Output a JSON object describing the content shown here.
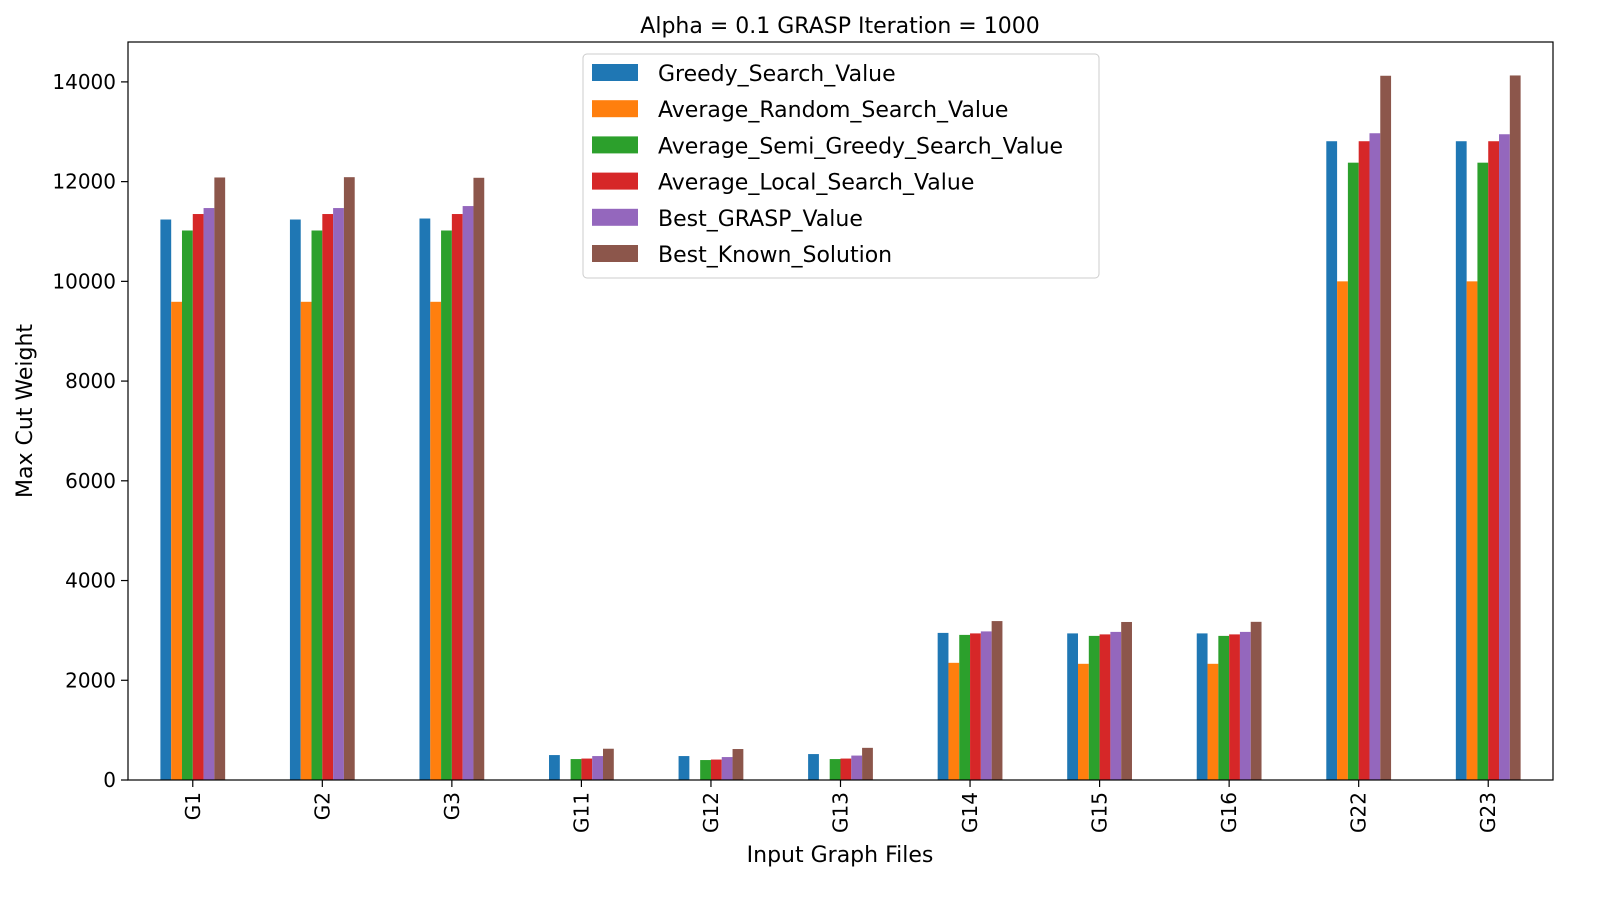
{
  "chart_data": {
    "type": "bar",
    "title": "Alpha = 0.1  GRASP Iteration = 1000",
    "xlabel": "Input Graph Files",
    "ylabel": "Max Cut Weight",
    "ylim": [
      0,
      14800
    ],
    "yticks": [
      0,
      2000,
      4000,
      6000,
      8000,
      10000,
      12000,
      14000
    ],
    "ytick_labels": [
      "0",
      "2000",
      "4000",
      "6000",
      "8000",
      "10000",
      "12000",
      "14000"
    ],
    "grid": false,
    "legend_position": "top-center",
    "categories": [
      "G1",
      "G2",
      "G3",
      "G11",
      "G12",
      "G13",
      "G14",
      "G15",
      "G16",
      "G22",
      "G23"
    ],
    "series": [
      {
        "name": "Greedy_Search_Value",
        "color": "#1f77b4",
        "values": [
          11240,
          11240,
          11260,
          500,
          480,
          520,
          2950,
          2940,
          2940,
          12810,
          12810
        ]
      },
      {
        "name": "Average_Random_Search_Value",
        "color": "#ff7f0e",
        "values": [
          9590,
          9590,
          9590,
          0,
          0,
          0,
          2350,
          2330,
          2330,
          10000,
          10000
        ]
      },
      {
        "name": "Average_Semi_Greedy_Search_Value",
        "color": "#2ca02c",
        "values": [
          11020,
          11020,
          11020,
          420,
          400,
          420,
          2910,
          2890,
          2890,
          12380,
          12380
        ]
      },
      {
        "name": "Average_Local_Search_Value",
        "color": "#d62728",
        "values": [
          11350,
          11350,
          11350,
          430,
          410,
          430,
          2940,
          2920,
          2920,
          12810,
          12810
        ]
      },
      {
        "name": "Best_GRASP_Value",
        "color": "#9467bd",
        "values": [
          11470,
          11470,
          11510,
          480,
          460,
          490,
          2980,
          2970,
          2970,
          12970,
          12950
        ]
      },
      {
        "name": "Best_Known_Solution",
        "color": "#8c564b",
        "values": [
          12083,
          12089,
          12077,
          627,
          621,
          645,
          3187,
          3169,
          3172,
          14123,
          14129
        ]
      }
    ]
  }
}
